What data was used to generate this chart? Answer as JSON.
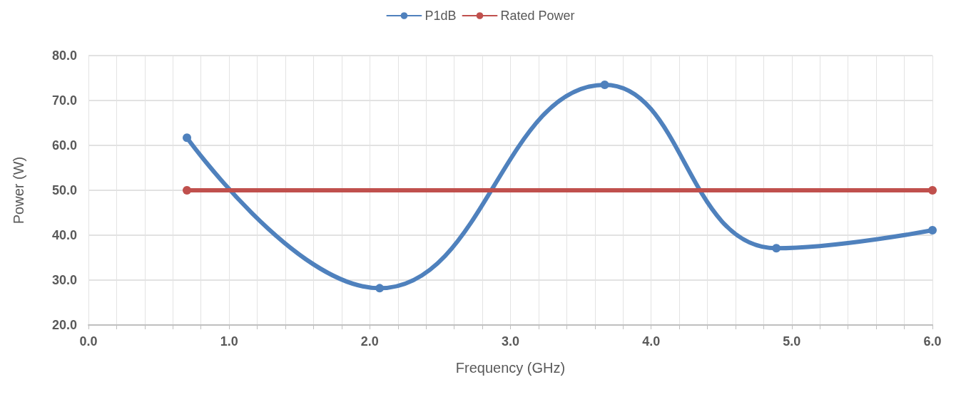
{
  "chart_data": {
    "type": "line",
    "xlabel": "Frequency (GHz)",
    "ylabel": "Power (W)",
    "series": [
      {
        "name": "P1dB",
        "color": "#4f81bd",
        "x": [
          0.7,
          2.07,
          3.67,
          4.89,
          6.0
        ],
        "values": [
          61.7,
          28.2,
          73.5,
          37.1,
          41.1
        ]
      },
      {
        "name": "Rated Power",
        "color": "#c0504d",
        "x": [
          0.7,
          6.0
        ],
        "values": [
          50,
          50
        ]
      }
    ],
    "xlim": [
      0,
      6
    ],
    "xticks": [
      {
        "value": 0,
        "label": "0.0"
      },
      {
        "value": 0.2,
        "label": null
      },
      {
        "value": 0.4,
        "label": null
      },
      {
        "value": 0.6,
        "label": null
      },
      {
        "value": 0.8,
        "label": null
      },
      {
        "value": 1,
        "label": "1.0"
      },
      {
        "value": 1.2,
        "label": null
      },
      {
        "value": 1.4,
        "label": null
      },
      {
        "value": 1.6,
        "label": null
      },
      {
        "value": 1.8,
        "label": null
      },
      {
        "value": 2,
        "label": "2.0"
      },
      {
        "value": 2.2,
        "label": null
      },
      {
        "value": 2.4,
        "label": null
      },
      {
        "value": 2.6,
        "label": null
      },
      {
        "value": 2.8,
        "label": null
      },
      {
        "value": 3,
        "label": "3.0"
      },
      {
        "value": 3.2,
        "label": null
      },
      {
        "value": 3.4,
        "label": null
      },
      {
        "value": 3.6,
        "label": null
      },
      {
        "value": 3.8,
        "label": null
      },
      {
        "value": 4,
        "label": "4.0"
      },
      {
        "value": 4.2,
        "label": null
      },
      {
        "value": 4.4,
        "label": null
      },
      {
        "value": 4.6,
        "label": null
      },
      {
        "value": 4.8,
        "label": null
      },
      {
        "value": 5,
        "label": "5.0"
      },
      {
        "value": 5.2,
        "label": null
      },
      {
        "value": 5.4,
        "label": null
      },
      {
        "value": 5.6,
        "label": null
      },
      {
        "value": 5.8,
        "label": null
      },
      {
        "value": 6,
        "label": "6.0"
      }
    ],
    "ylim": [
      20,
      80
    ],
    "yticks": [
      {
        "value": 20,
        "label": "20.0"
      },
      {
        "value": 30,
        "label": "30.0"
      },
      {
        "value": 40,
        "label": "40.0"
      },
      {
        "value": 50,
        "label": "50.0"
      },
      {
        "value": 60,
        "label": "60.0"
      },
      {
        "value": 70,
        "label": "70.0"
      },
      {
        "value": 80,
        "label": "80.0"
      }
    ],
    "grid": true,
    "legend": "top",
    "marker": "circle",
    "line_style": "solid"
  }
}
